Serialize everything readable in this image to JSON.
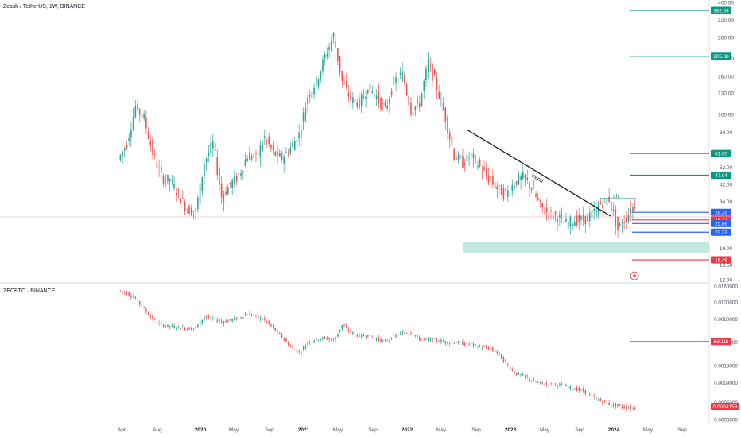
{
  "colors": {
    "up": "#26a69a",
    "down": "#ef5350",
    "axis_text": "#4a4e5a",
    "green_line": "#089981",
    "red_line": "#f23645",
    "blue_line": "#2962ff",
    "zone": "#b2dfdb",
    "trend_line": "#131722"
  },
  "main": {
    "title": "Zcash / TetherUS, 1W, BINANCE",
    "price_ticks": [
      "400.00",
      "320.00",
      "260.00",
      "200.00",
      "160.00",
      "130.00",
      "100.00",
      "80.00",
      "52.00",
      "42.00",
      "34.00",
      "19.00",
      "15.50",
      "12.90"
    ],
    "trend_label": "trend",
    "ch_label": "ch",
    "levels": [
      {
        "value": "362.59",
        "color": "#089981"
      },
      {
        "value": "205.38",
        "color": "#089981"
      },
      {
        "value": "61.60",
        "color": "#089981"
      },
      {
        "value": "47.04",
        "color": "#089981"
      },
      {
        "value": "28.29",
        "color": "#2962ff"
      },
      {
        "value": "28.12",
        "color": "#f23645"
      },
      {
        "value": "6d 11h",
        "color": "#f23645"
      },
      {
        "value": "25.86",
        "color": "#2962ff"
      },
      {
        "value": "23.22",
        "color": "#2962ff"
      },
      {
        "value": "16.49",
        "color": "#f23645"
      }
    ]
  },
  "sub": {
    "title": "ZECBTC · BINANCE",
    "ticks": [
      "0.0160000",
      "0.0100000",
      "0.0060000",
      "0.0030000",
      "0.0015000",
      "0.0009000",
      "0.0005000",
      "0.0003000"
    ],
    "last_value": "0.0004158"
  },
  "x_ticks": [
    "Apr",
    "Aug",
    "2020",
    "May",
    "Sep",
    "2021",
    "May",
    "Sep",
    "2022",
    "May",
    "Sep",
    "2023",
    "May",
    "Sep",
    "2024",
    "May",
    "Sep"
  ],
  "chart_data": [
    {
      "type": "candlestick",
      "title": "Zcash / TetherUS, 1W, BINANCE",
      "scale": "log",
      "ylim": [
        12.9,
        400
      ],
      "x": [
        "2019-03",
        "2019-04",
        "2019-05",
        "2019-06",
        "2019-07",
        "2019-08",
        "2019-09",
        "2019-10",
        "2019-11",
        "2019-12",
        "2020-01",
        "2020-02",
        "2020-03",
        "2020-04",
        "2020-05",
        "2020-06",
        "2020-07",
        "2020-08",
        "2020-09",
        "2020-10",
        "2020-11",
        "2020-12",
        "2021-01",
        "2021-02",
        "2021-03",
        "2021-04",
        "2021-05",
        "2021-06",
        "2021-07",
        "2021-08",
        "2021-09",
        "2021-10",
        "2021-11",
        "2021-12",
        "2022-01",
        "2022-02",
        "2022-03",
        "2022-04",
        "2022-05",
        "2022-06",
        "2022-07",
        "2022-08",
        "2022-09",
        "2022-10",
        "2022-11",
        "2022-12",
        "2023-01",
        "2023-02",
        "2023-03",
        "2023-04",
        "2023-05",
        "2023-06",
        "2023-07",
        "2023-08",
        "2023-09",
        "2023-10",
        "2023-11",
        "2023-12",
        "2024-01",
        "2024-02",
        "2024-03"
      ],
      "close": [
        57,
        70,
        110,
        95,
        62,
        46,
        44,
        37,
        31,
        30,
        55,
        70,
        36,
        42,
        47,
        60,
        58,
        75,
        62,
        58,
        66,
        78,
        125,
        150,
        205,
        265,
        150,
        120,
        115,
        140,
        125,
        105,
        150,
        165,
        105,
        115,
        190,
        140,
        95,
        60,
        55,
        60,
        52,
        45,
        40,
        37,
        43,
        46,
        40,
        32,
        29,
        28,
        26,
        27,
        27,
        29,
        33,
        35,
        24,
        28,
        33
      ],
      "levels": [
        362.59,
        205.38,
        61.6,
        47.04,
        28.29,
        28.12,
        25.86,
        23.22,
        16.49
      ]
    },
    {
      "type": "candlestick",
      "title": "ZECBTC · BINANCE",
      "scale": "log",
      "ylim": [
        0.0003,
        0.016
      ],
      "x": [
        "2019-03",
        "2019-04",
        "2019-05",
        "2019-06",
        "2019-07",
        "2019-08",
        "2019-09",
        "2019-10",
        "2019-11",
        "2019-12",
        "2020-01",
        "2020-02",
        "2020-03",
        "2020-04",
        "2020-05",
        "2020-06",
        "2020-07",
        "2020-08",
        "2020-09",
        "2020-10",
        "2020-11",
        "2020-12",
        "2021-01",
        "2021-02",
        "2021-03",
        "2021-04",
        "2021-05",
        "2021-06",
        "2021-07",
        "2021-08",
        "2021-09",
        "2021-10",
        "2021-11",
        "2021-12",
        "2022-01",
        "2022-02",
        "2022-03",
        "2022-04",
        "2022-05",
        "2022-06",
        "2022-07",
        "2022-08",
        "2022-09",
        "2022-10",
        "2022-11",
        "2022-12",
        "2023-01",
        "2023-02",
        "2023-03",
        "2023-04",
        "2023-05",
        "2023-06",
        "2023-07",
        "2023-08",
        "2023-09",
        "2023-10",
        "2023-11",
        "2023-12",
        "2024-01",
        "2024-02",
        "2024-03"
      ],
      "close": [
        0.014,
        0.013,
        0.011,
        0.008,
        0.006,
        0.005,
        0.0048,
        0.0047,
        0.0045,
        0.0046,
        0.0065,
        0.006,
        0.0055,
        0.0058,
        0.0062,
        0.007,
        0.0064,
        0.0058,
        0.0045,
        0.0035,
        0.0026,
        0.0022,
        0.003,
        0.0033,
        0.0034,
        0.0032,
        0.005,
        0.004,
        0.0036,
        0.0037,
        0.0033,
        0.003,
        0.0036,
        0.004,
        0.004,
        0.0033,
        0.0032,
        0.0032,
        0.003,
        0.003,
        0.0029,
        0.0028,
        0.0026,
        0.0025,
        0.0022,
        0.0016,
        0.0012,
        0.0011,
        0.00095,
        0.00088,
        0.00085,
        0.00085,
        0.0008,
        0.00075,
        0.0007,
        0.0006,
        0.00052,
        0.00047,
        0.00045,
        0.00043,
        0.00042
      ]
    }
  ]
}
